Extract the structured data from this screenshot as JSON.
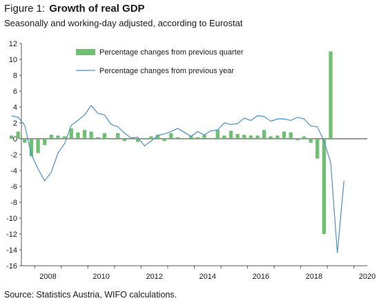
{
  "header": {
    "figure_label": "Figure 1:",
    "title": "Growth of real GDP",
    "subtitle": "Seasonally and working-day adjusted, according to Eurostat"
  },
  "footer": {
    "source": "Source: Statistics Austria, WIFO calculations."
  },
  "colors": {
    "bars": "#6fbf73",
    "line": "#4a90c8",
    "axis": "#555555"
  },
  "chart_data": {
    "type": "bar",
    "xlabel": "",
    "ylabel": "",
    "ylim": [
      -16,
      12
    ],
    "yticks": [
      12,
      10,
      8,
      6,
      4,
      2,
      0,
      -2,
      -4,
      -6,
      -8,
      -10,
      -12,
      -14,
      -16
    ],
    "xrange": [
      2007.5,
      2020.5
    ],
    "xtick_labels": [
      "2008",
      "2010",
      "2012",
      "2014",
      "2016",
      "2018",
      "2020"
    ],
    "legend_position": "top-left",
    "series": [
      {
        "name": "Percentage changes from previous quarter",
        "kind": "bar",
        "start": "2007Q1",
        "values": [
          0.4,
          0.9,
          -0.5,
          -2.2,
          -1.8,
          -0.8,
          0.5,
          0.4,
          0.3,
          1.3,
          0.8,
          1.1,
          0.9,
          0.2,
          0.7,
          -0.1,
          0.7,
          -0.3,
          0.1,
          -0.4,
          0.1,
          0.3,
          0.5,
          -0.3,
          0.7,
          0.2,
          0.1,
          0.4,
          0.2,
          0.5,
          0.1,
          1.1,
          0.4,
          1.0,
          0.6,
          0.5,
          0.4,
          0.4,
          1.1,
          0.3,
          0.4,
          0.9,
          0.8,
          -0.2,
          0.3,
          -0.5,
          -2.5,
          -12.0,
          11.0
        ]
      },
      {
        "name": "Percentage changes from previous year",
        "kind": "line",
        "start": "2007Q1",
        "values": [
          2.9,
          2.7,
          1.7,
          -2.0,
          -3.8,
          -5.3,
          -4.2,
          -1.8,
          -0.6,
          1.7,
          2.3,
          3.0,
          4.2,
          3.2,
          3.0,
          1.8,
          1.5,
          0.7,
          0.1,
          0.2,
          -0.9,
          -0.3,
          0.4,
          0.6,
          0.9,
          1.3,
          0.8,
          0.3,
          0.9,
          0.5,
          1.0,
          1.1,
          2.0,
          1.8,
          1.9,
          2.6,
          2.3,
          2.9,
          2.8,
          2.2,
          2.5,
          2.5,
          2.3,
          2.7,
          2.5,
          1.6,
          1.5,
          -0.3,
          -3.0,
          -14.4,
          -5.3
        ]
      }
    ]
  }
}
